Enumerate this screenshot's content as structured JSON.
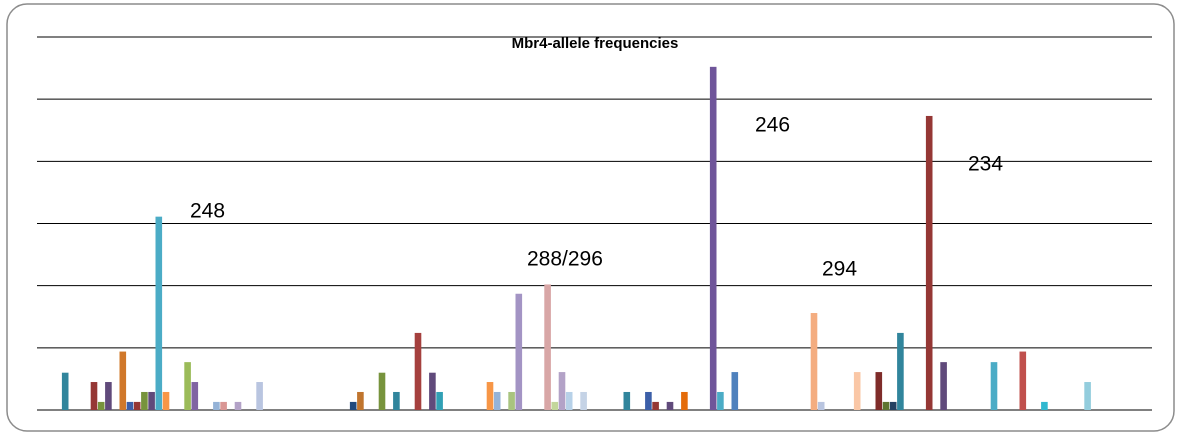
{
  "chart_data": {
    "type": "bar",
    "title": "Mbr4-allele frequencies",
    "annotations": [
      "248",
      "288/296",
      "246",
      "294",
      "234"
    ],
    "ylim": [
      0,
      6
    ],
    "grid_lines": [
      0,
      1,
      2,
      3,
      4,
      5,
      6
    ],
    "grid": true,
    "values": [
      null,
      null,
      null,
      0.6,
      null,
      null,
      null,
      0.45,
      0.13,
      0.45,
      null,
      0.94,
      0.13,
      0.13,
      0.29,
      0.29,
      3.11,
      0.29,
      null,
      null,
      0.77,
      0.45,
      null,
      null,
      0.13,
      0.13,
      null,
      0.13,
      null,
      null,
      0.45,
      null,
      null,
      null,
      null,
      null,
      null,
      null,
      null,
      null,
      null,
      null,
      null,
      0.13,
      0.29,
      null,
      null,
      0.6,
      null,
      0.29,
      null,
      null,
      1.24,
      null,
      0.6,
      0.29,
      null,
      null,
      null,
      null,
      null,
      null,
      0.45,
      0.29,
      null,
      0.29,
      1.87,
      null,
      null,
      null,
      2.02,
      0.13,
      0.61,
      0.29,
      null,
      0.29,
      null,
      null,
      null,
      null,
      null,
      0.29,
      null,
      null,
      0.29,
      0.13,
      null,
      0.13,
      null,
      0.29,
      null,
      null,
      null,
      5.52,
      0.29,
      null,
      0.61,
      null,
      null,
      null,
      null,
      null,
      null,
      null,
      null,
      null,
      null,
      1.56,
      0.13,
      null,
      null,
      null,
      null,
      0.61,
      null,
      null,
      0.61,
      0.13,
      0.13,
      1.24,
      null,
      null,
      null,
      4.73,
      null,
      0.77,
      null,
      null,
      null,
      null,
      null,
      null,
      0.77,
      null,
      null,
      null,
      0.94,
      null,
      null,
      0.13,
      null,
      null,
      null,
      null,
      null,
      0.45,
      null,
      null,
      null,
      null,
      null,
      null,
      null,
      null
    ],
    "colors": [
      "#31859c",
      "#953735",
      "#77933c",
      "#604a7b",
      "#d0782a",
      "#3c5fa8",
      "#953735",
      "#77933c",
      "#604a7b",
      "#4bacc6",
      "#f79646",
      "#9bbb59",
      "#8064a2",
      "#95b3d7",
      "#d99694",
      "#b3a2c7",
      "#b9c5e0",
      "#1f497d",
      "#c0752e",
      "#77933c",
      "#31859c",
      "#a5403e",
      "#604a7b",
      "#31a0b5",
      "#f79646",
      "#95b3d7",
      "#a9c47f",
      "#a394c4",
      "#d8a6a6",
      "#c3d69b",
      "#b3a2c7",
      "#b7d1e8",
      "#c5d3e6",
      "#31859c",
      "#3c5fa8",
      "#953735",
      "#604a7b",
      "#e46c0a",
      "#6f559a",
      "#4bacc6",
      "#4f81bd",
      "#f4ad80",
      "#b9c5e0",
      "#fac7a6",
      "#7f2c2a",
      "#5f7530",
      "#244061",
      "#31859c",
      "#953735",
      "#604a7b",
      "#4bacc6",
      "#c0504d",
      "#31b8d0",
      "#93cddd"
    ]
  }
}
